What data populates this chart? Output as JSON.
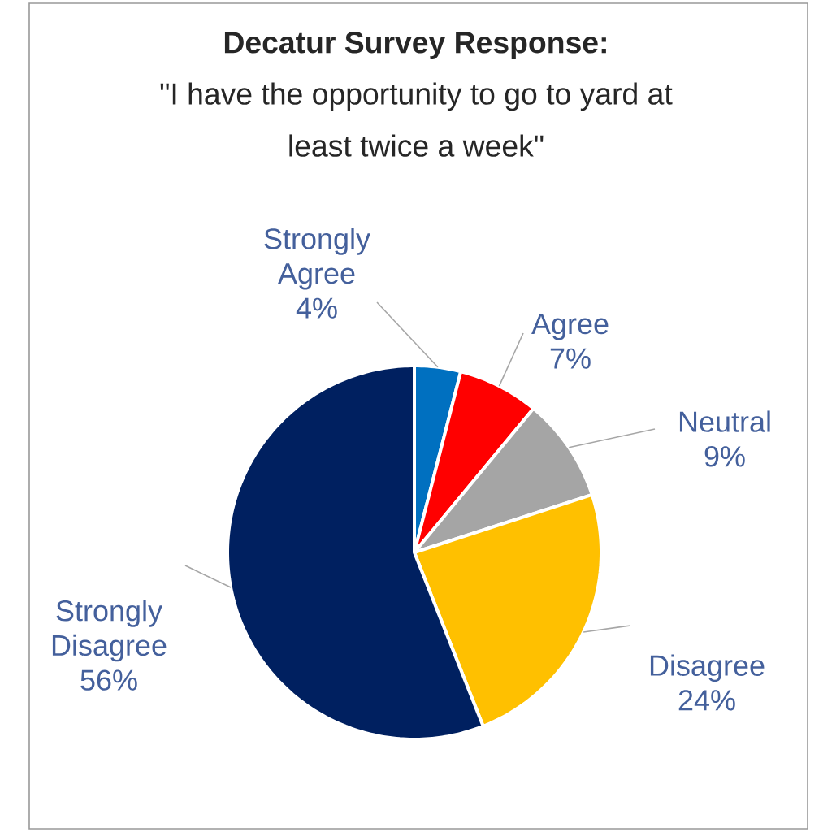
{
  "chart_data": {
    "type": "pie",
    "title": "Decatur Survey Response:",
    "subtitle": "\"I have the opportunity to go to yard at least twice a week\"",
    "categories": [
      "Strongly Agree",
      "Agree",
      "Neutral",
      "Disagree",
      "Strongly Disagree"
    ],
    "values": [
      4,
      7,
      9,
      24,
      56
    ],
    "value_labels": [
      "4%",
      "7%",
      "9%",
      "24%",
      "56%"
    ],
    "colors": [
      "#0070c0",
      "#ff0000",
      "#a5a5a5",
      "#ffc000",
      "#002060"
    ]
  }
}
